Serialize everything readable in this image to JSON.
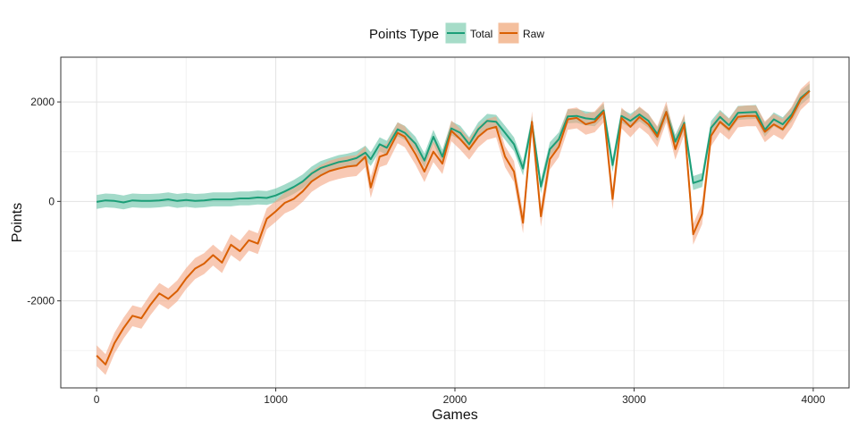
{
  "chart_data": {
    "type": "line",
    "xlabel": "Games",
    "ylabel": "Points",
    "xlim": [
      -200,
      4200
    ],
    "ylim": [
      -3750,
      2900
    ],
    "x_ticks": [
      0,
      1000,
      2000,
      3000,
      4000
    ],
    "x_tick_labels": [
      "0",
      "1000",
      "2000",
      "3000",
      "4000"
    ],
    "y_ticks": [
      -2000,
      0,
      2000
    ],
    "y_tick_labels": [
      "-2000",
      "0",
      "2000"
    ],
    "grid": true,
    "legend": {
      "title": "Points Type",
      "placement": "top-center"
    },
    "series": [
      {
        "name": "Total",
        "color": "#1b9e77",
        "band_color": "#66c2a5",
        "x": [
          0,
          50,
          100,
          150,
          200,
          250,
          300,
          350,
          400,
          450,
          500,
          550,
          600,
          650,
          700,
          750,
          800,
          850,
          900,
          950,
          1000,
          1050,
          1100,
          1150,
          1200,
          1250,
          1300,
          1350,
          1400,
          1450,
          1500,
          1530,
          1580,
          1620,
          1680,
          1720,
          1780,
          1830,
          1880,
          1930,
          1980,
          2030,
          2080,
          2130,
          2180,
          2230,
          2280,
          2330,
          2380,
          2430,
          2480,
          2530,
          2580,
          2630,
          2680,
          2730,
          2780,
          2830,
          2880,
          2930,
          2980,
          3030,
          3080,
          3130,
          3180,
          3230,
          3280,
          3330,
          3380,
          3430,
          3480,
          3530,
          3580,
          3630,
          3680,
          3730,
          3780,
          3830,
          3880,
          3930,
          3980
        ],
        "values": [
          -10,
          20,
          10,
          -20,
          20,
          10,
          10,
          20,
          40,
          10,
          30,
          10,
          20,
          40,
          40,
          40,
          60,
          60,
          80,
          70,
          120,
          200,
          290,
          400,
          560,
          670,
          730,
          790,
          820,
          870,
          980,
          850,
          1150,
          1080,
          1450,
          1380,
          1160,
          820,
          1300,
          900,
          1470,
          1380,
          1150,
          1450,
          1620,
          1600,
          1380,
          1150,
          660,
          1580,
          300,
          1050,
          1250,
          1710,
          1720,
          1670,
          1650,
          1830,
          730,
          1720,
          1620,
          1750,
          1620,
          1350,
          1800,
          1200,
          1580,
          370,
          430,
          1480,
          1700,
          1530,
          1780,
          1790,
          1800,
          1440,
          1650,
          1550,
          1750,
          2080,
          2230
        ],
        "ci_halfwidth": 140
      },
      {
        "name": "Raw",
        "color": "#d95f02",
        "band_color": "#f4a582",
        "x": [
          0,
          50,
          100,
          150,
          200,
          250,
          300,
          350,
          400,
          450,
          500,
          550,
          600,
          650,
          700,
          750,
          800,
          850,
          900,
          950,
          1000,
          1050,
          1100,
          1150,
          1200,
          1250,
          1300,
          1350,
          1400,
          1450,
          1500,
          1530,
          1580,
          1620,
          1680,
          1720,
          1780,
          1830,
          1880,
          1930,
          1980,
          2030,
          2080,
          2130,
          2180,
          2230,
          2280,
          2330,
          2380,
          2430,
          2480,
          2530,
          2580,
          2630,
          2680,
          2730,
          2780,
          2830,
          2880,
          2930,
          2980,
          3030,
          3080,
          3130,
          3180,
          3230,
          3280,
          3330,
          3380,
          3430,
          3480,
          3530,
          3580,
          3630,
          3680,
          3730,
          3780,
          3830,
          3880,
          3930,
          3980
        ],
        "values": [
          -3100,
          -3280,
          -2850,
          -2550,
          -2300,
          -2350,
          -2080,
          -1850,
          -1960,
          -1800,
          -1550,
          -1350,
          -1250,
          -1080,
          -1230,
          -870,
          -1000,
          -780,
          -850,
          -350,
          -200,
          -30,
          50,
          200,
          400,
          520,
          610,
          660,
          700,
          720,
          900,
          280,
          900,
          950,
          1380,
          1300,
          950,
          600,
          1000,
          760,
          1420,
          1250,
          1050,
          1300,
          1450,
          1500,
          900,
          600,
          -430,
          1600,
          -300,
          850,
          1100,
          1650,
          1680,
          1550,
          1600,
          1800,
          50,
          1680,
          1500,
          1700,
          1550,
          1300,
          1800,
          1050,
          1550,
          -660,
          -250,
          1320,
          1600,
          1450,
          1700,
          1720,
          1720,
          1400,
          1550,
          1450,
          1700,
          2050,
          2220
        ],
        "ci_halfwidth": 210
      }
    ]
  }
}
